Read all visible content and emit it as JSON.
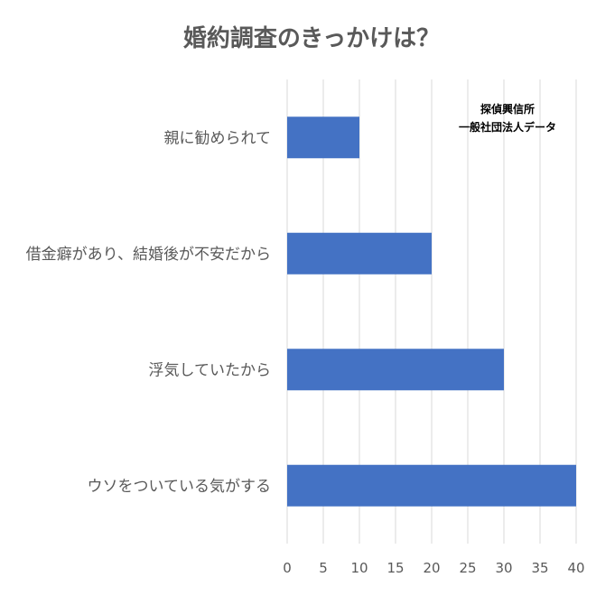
{
  "chart_data": {
    "type": "bar",
    "orientation": "horizontal",
    "title": "婚約調査のきっかけは？",
    "categories": [
      "親に勧められて",
      "借金癖があり、結婚後が不安だから",
      "浮気していたから",
      "ウソをついている気がする"
    ],
    "values": [
      10,
      20,
      30,
      40
    ],
    "xlim": [
      0,
      40
    ],
    "xticks": [
      0,
      5,
      10,
      15,
      20,
      25,
      30,
      35,
      40
    ],
    "xlabel": "",
    "ylabel": "",
    "grid": true,
    "legend": "none",
    "annotation": [
      "探偵興信所",
      "一般社団法人データ"
    ],
    "colors": {
      "bar": "#4472c4",
      "grid": "#d9d9d9",
      "text": "#595959"
    }
  }
}
